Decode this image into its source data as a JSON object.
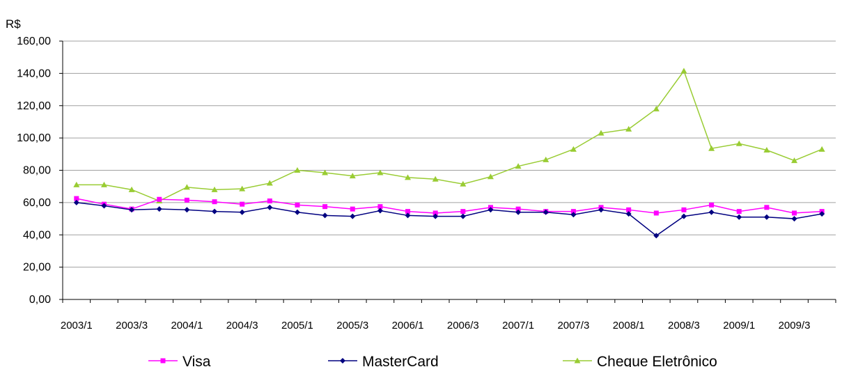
{
  "chart_data": {
    "type": "line",
    "ylabel": "R$",
    "ylim": [
      0,
      160
    ],
    "yticks": [
      "0,00",
      "20,00",
      "40,00",
      "60,00",
      "80,00",
      "100,00",
      "120,00",
      "140,00",
      "160,00"
    ],
    "ytick_values": [
      0,
      20,
      40,
      60,
      80,
      100,
      120,
      140,
      160
    ],
    "grid": true,
    "legend": "bottom",
    "x": [
      "2003/1",
      "2003/2",
      "2003/3",
      "2003/4",
      "2004/1",
      "2004/2",
      "2004/3",
      "2004/4",
      "2005/1",
      "2005/2",
      "2005/3",
      "2005/4",
      "2006/1",
      "2006/2",
      "2006/3",
      "2006/4",
      "2007/1",
      "2007/2",
      "2007/3",
      "2007/4",
      "2008/1",
      "2008/2",
      "2008/3",
      "2008/4",
      "2009/1",
      "2009/2",
      "2009/3",
      "2009/4"
    ],
    "xtick_labels": [
      "2003/1",
      "2003/3",
      "2004/1",
      "2004/3",
      "2005/1",
      "2005/3",
      "2006/1",
      "2006/3",
      "2007/1",
      "2007/3",
      "2008/1",
      "2008/3",
      "2009/1",
      "2009/3"
    ],
    "series": [
      {
        "name": "Visa",
        "color": "#ff00ff",
        "marker": "square",
        "values": [
          62.5,
          59,
          56,
          62,
          61.5,
          60.5,
          59,
          61,
          58.5,
          57.5,
          56,
          57.5,
          54.5,
          53.5,
          54.5,
          57,
          56,
          54.5,
          54.5,
          57,
          55.5,
          53.5,
          55.5,
          58.5,
          54.5,
          57,
          53.5,
          54.5
        ]
      },
      {
        "name": "MasterCard",
        "color": "#000080",
        "marker": "diamond",
        "values": [
          60,
          58,
          55.5,
          56,
          55.5,
          54.5,
          54,
          57,
          54,
          52,
          51.5,
          55,
          52,
          51.5,
          51.5,
          55.5,
          54,
          54,
          52.5,
          55.5,
          53,
          39.5,
          51.5,
          54,
          51,
          51,
          50,
          53
        ]
      },
      {
        "name": "Cheque Eletrônico",
        "color": "#99cc33",
        "marker": "triangle",
        "values": [
          71,
          71,
          68,
          61,
          69.5,
          68,
          68.5,
          72,
          80,
          78.5,
          76.5,
          78.5,
          75.5,
          74.5,
          71.5,
          76,
          82.5,
          86.5,
          93,
          103,
          105.5,
          118,
          141.5,
          93.5,
          96.5,
          92.5,
          86,
          93
        ]
      }
    ]
  }
}
